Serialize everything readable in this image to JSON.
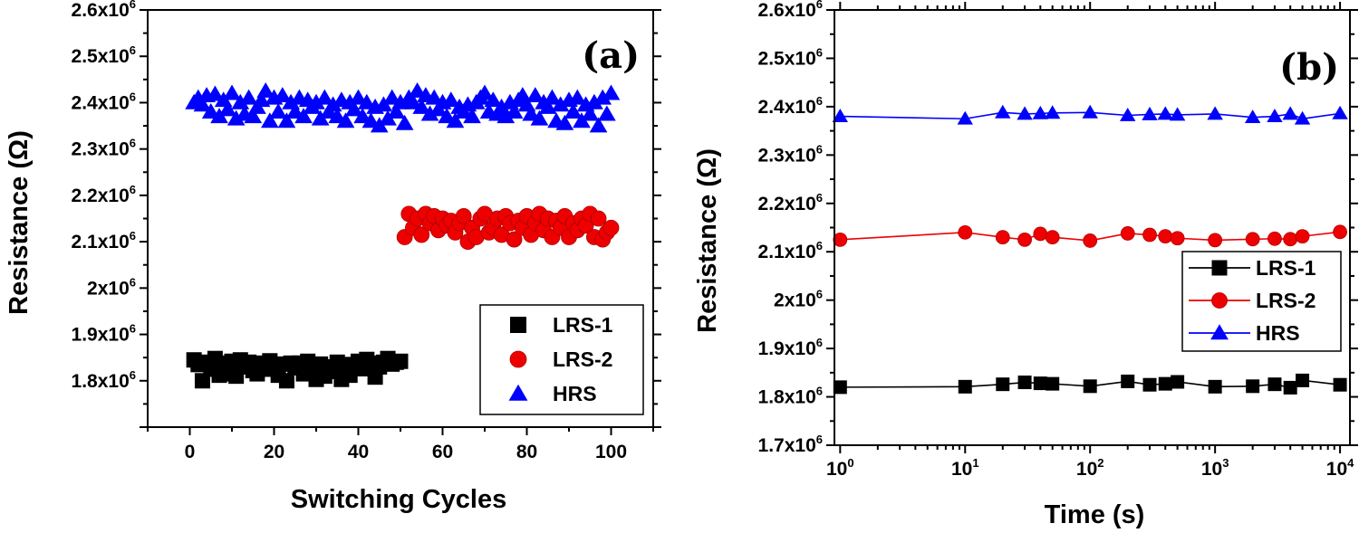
{
  "chart_data": [
    {
      "type": "scatter",
      "panel_label": "(a)",
      "xlabel": "Switching Cycles",
      "ylabel": "Resistance (Ω)",
      "xlim": [
        -10,
        110
      ],
      "ylim": [
        1700000,
        2600000
      ],
      "xticks": [
        "0",
        "20",
        "40",
        "60",
        "80",
        "100"
      ],
      "yticks": [
        {
          "base": "1.8x10",
          "exp": "6"
        },
        {
          "base": "1.9x10",
          "exp": "6"
        },
        {
          "base": "2x10",
          "exp": "6"
        },
        {
          "base": "2.1x10",
          "exp": "6"
        },
        {
          "base": "2.2x10",
          "exp": "6"
        },
        {
          "base": "2.3x10",
          "exp": "6"
        },
        {
          "base": "2.4x10",
          "exp": "6"
        },
        {
          "base": "2.5x10",
          "exp": "6"
        },
        {
          "base": "2.6x10",
          "exp": "6"
        }
      ],
      "grid": false,
      "legend_position": "bottom-right",
      "series": [
        {
          "name": "LRS-1",
          "color": "#000000",
          "marker": "square",
          "x": [
            1,
            2,
            3,
            4,
            5,
            6,
            7,
            8,
            9,
            10,
            11,
            12,
            13,
            14,
            15,
            16,
            17,
            18,
            19,
            20,
            21,
            22,
            23,
            24,
            25,
            26,
            27,
            28,
            29,
            30,
            31,
            32,
            33,
            34,
            35,
            36,
            37,
            38,
            39,
            40,
            41,
            42,
            43,
            44,
            45,
            46,
            47,
            48,
            49,
            50
          ],
          "y": [
            1845000,
            1835000,
            1800000,
            1840000,
            1825000,
            1848000,
            1812000,
            1838000,
            1815000,
            1842000,
            1810000,
            1845000,
            1830000,
            1840000,
            1822000,
            1815000,
            1838000,
            1825000,
            1843000,
            1830000,
            1812000,
            1836000,
            1800000,
            1838000,
            1828000,
            1838000,
            1815000,
            1842000,
            1822000,
            1803000,
            1836000,
            1810000,
            1830000,
            1820000,
            1840000,
            1803000,
            1835000,
            1812000,
            1830000,
            1842000,
            1826000,
            1846000,
            1838000,
            1808000,
            1830000,
            1840000,
            1848000,
            1836000,
            1840000,
            1842000
          ]
        },
        {
          "name": "LRS-2",
          "color": "#ee0000",
          "marker": "circle",
          "x": [
            51,
            52,
            53,
            54,
            55,
            56,
            57,
            58,
            59,
            60,
            61,
            62,
            63,
            64,
            65,
            66,
            67,
            68,
            69,
            70,
            71,
            72,
            73,
            74,
            75,
            76,
            77,
            78,
            79,
            80,
            81,
            82,
            83,
            84,
            85,
            86,
            87,
            88,
            89,
            90,
            91,
            92,
            93,
            94,
            95,
            96,
            97,
            98,
            99,
            100
          ],
          "y": [
            2110000,
            2160000,
            2130000,
            2150000,
            2115000,
            2160000,
            2140000,
            2155000,
            2125000,
            2150000,
            2135000,
            2145000,
            2120000,
            2140000,
            2155000,
            2100000,
            2130000,
            2110000,
            2150000,
            2160000,
            2120000,
            2130000,
            2150000,
            2115000,
            2155000,
            2140000,
            2105000,
            2145000,
            2130000,
            2155000,
            2115000,
            2140000,
            2160000,
            2125000,
            2150000,
            2110000,
            2145000,
            2130000,
            2155000,
            2110000,
            2140000,
            2125000,
            2150000,
            2135000,
            2160000,
            2110000,
            2150000,
            2105000,
            2120000,
            2130000
          ]
        },
        {
          "name": "HRS",
          "color": "#0000ff",
          "marker": "triangle",
          "x": [
            1,
            2,
            3,
            4,
            5,
            6,
            7,
            8,
            9,
            10,
            11,
            12,
            13,
            14,
            15,
            16,
            17,
            18,
            19,
            20,
            21,
            22,
            23,
            24,
            25,
            26,
            27,
            28,
            29,
            30,
            31,
            32,
            33,
            34,
            35,
            36,
            37,
            38,
            39,
            40,
            41,
            42,
            43,
            44,
            45,
            46,
            47,
            48,
            49,
            50,
            51,
            52,
            53,
            54,
            55,
            56,
            57,
            58,
            59,
            60,
            61,
            62,
            63,
            64,
            65,
            66,
            67,
            68,
            69,
            70,
            71,
            72,
            73,
            74,
            75,
            76,
            77,
            78,
            79,
            80,
            81,
            82,
            83,
            84,
            85,
            86,
            87,
            88,
            89,
            90,
            91,
            92,
            93,
            94,
            95,
            96,
            97,
            98,
            99,
            100
          ],
          "y": [
            2400000,
            2410000,
            2395000,
            2415000,
            2380000,
            2418000,
            2370000,
            2405000,
            2385000,
            2420000,
            2365000,
            2400000,
            2375000,
            2410000,
            2370000,
            2390000,
            2405000,
            2425000,
            2360000,
            2410000,
            2380000,
            2415000,
            2360000,
            2400000,
            2380000,
            2410000,
            2370000,
            2405000,
            2390000,
            2400000,
            2365000,
            2410000,
            2380000,
            2395000,
            2370000,
            2405000,
            2360000,
            2400000,
            2385000,
            2410000,
            2370000,
            2400000,
            2360000,
            2390000,
            2350000,
            2395000,
            2365000,
            2410000,
            2380000,
            2400000,
            2355000,
            2410000,
            2400000,
            2425000,
            2390000,
            2415000,
            2375000,
            2410000,
            2385000,
            2400000,
            2370000,
            2405000,
            2360000,
            2390000,
            2380000,
            2395000,
            2370000,
            2400000,
            2410000,
            2420000,
            2380000,
            2405000,
            2375000,
            2390000,
            2370000,
            2400000,
            2380000,
            2405000,
            2415000,
            2395000,
            2375000,
            2415000,
            2365000,
            2400000,
            2390000,
            2410000,
            2360000,
            2395000,
            2355000,
            2405000,
            2380000,
            2410000,
            2360000,
            2395000,
            2375000,
            2400000,
            2350000,
            2410000,
            2375000,
            2420000
          ]
        }
      ]
    },
    {
      "type": "line",
      "panel_label": "(b)",
      "xlabel": "Time (s)",
      "ylabel": "Resistance (Ω)",
      "xscale": "log",
      "xlim": [
        0.9,
        12000
      ],
      "ylim": [
        1700000,
        2600000
      ],
      "xticks": [
        {
          "base": "10",
          "exp": "0"
        },
        {
          "base": "10",
          "exp": "1"
        },
        {
          "base": "10",
          "exp": "2"
        },
        {
          "base": "10",
          "exp": "3"
        },
        {
          "base": "10",
          "exp": "4"
        }
      ],
      "yticks": [
        {
          "base": "1.7x10",
          "exp": "6"
        },
        {
          "base": "1.8x10",
          "exp": "6"
        },
        {
          "base": "1.9x10",
          "exp": "6"
        },
        {
          "base": "2x10",
          "exp": "6"
        },
        {
          "base": "2.1x10",
          "exp": "6"
        },
        {
          "base": "2.2x10",
          "exp": "6"
        },
        {
          "base": "2.3x10",
          "exp": "6"
        },
        {
          "base": "2.4x10",
          "exp": "6"
        },
        {
          "base": "2.5x10",
          "exp": "6"
        },
        {
          "base": "2.6x10",
          "exp": "6"
        }
      ],
      "grid": false,
      "legend_position": "right",
      "series": [
        {
          "name": "LRS-1",
          "color": "#000000",
          "marker": "square",
          "x": [
            1,
            10,
            20,
            30,
            40,
            50,
            100,
            200,
            300,
            400,
            500,
            1000,
            2000,
            3000,
            4000,
            5000,
            10000
          ],
          "y": [
            1820000,
            1821000,
            1826000,
            1830000,
            1828000,
            1827000,
            1822000,
            1832000,
            1825000,
            1827000,
            1831000,
            1821000,
            1822000,
            1826000,
            1819000,
            1834000,
            1825000
          ]
        },
        {
          "name": "LRS-2",
          "color": "#ee0000",
          "marker": "circle",
          "x": [
            1,
            10,
            20,
            30,
            40,
            50,
            100,
            200,
            300,
            400,
            500,
            1000,
            2000,
            3000,
            4000,
            5000,
            10000
          ],
          "y": [
            2125000,
            2140000,
            2130000,
            2125000,
            2137000,
            2130000,
            2123000,
            2138000,
            2135000,
            2132000,
            2128000,
            2124000,
            2126000,
            2127000,
            2126000,
            2132000,
            2141000
          ]
        },
        {
          "name": "HRS",
          "color": "#0000ff",
          "marker": "triangle",
          "x": [
            1,
            10,
            20,
            30,
            40,
            50,
            100,
            200,
            300,
            400,
            500,
            1000,
            2000,
            3000,
            4000,
            5000,
            10000
          ],
          "y": [
            2380000,
            2375000,
            2388000,
            2385000,
            2386000,
            2387000,
            2388000,
            2382000,
            2384000,
            2385000,
            2383000,
            2385000,
            2378000,
            2380000,
            2385000,
            2375000,
            2386000
          ]
        }
      ]
    }
  ]
}
